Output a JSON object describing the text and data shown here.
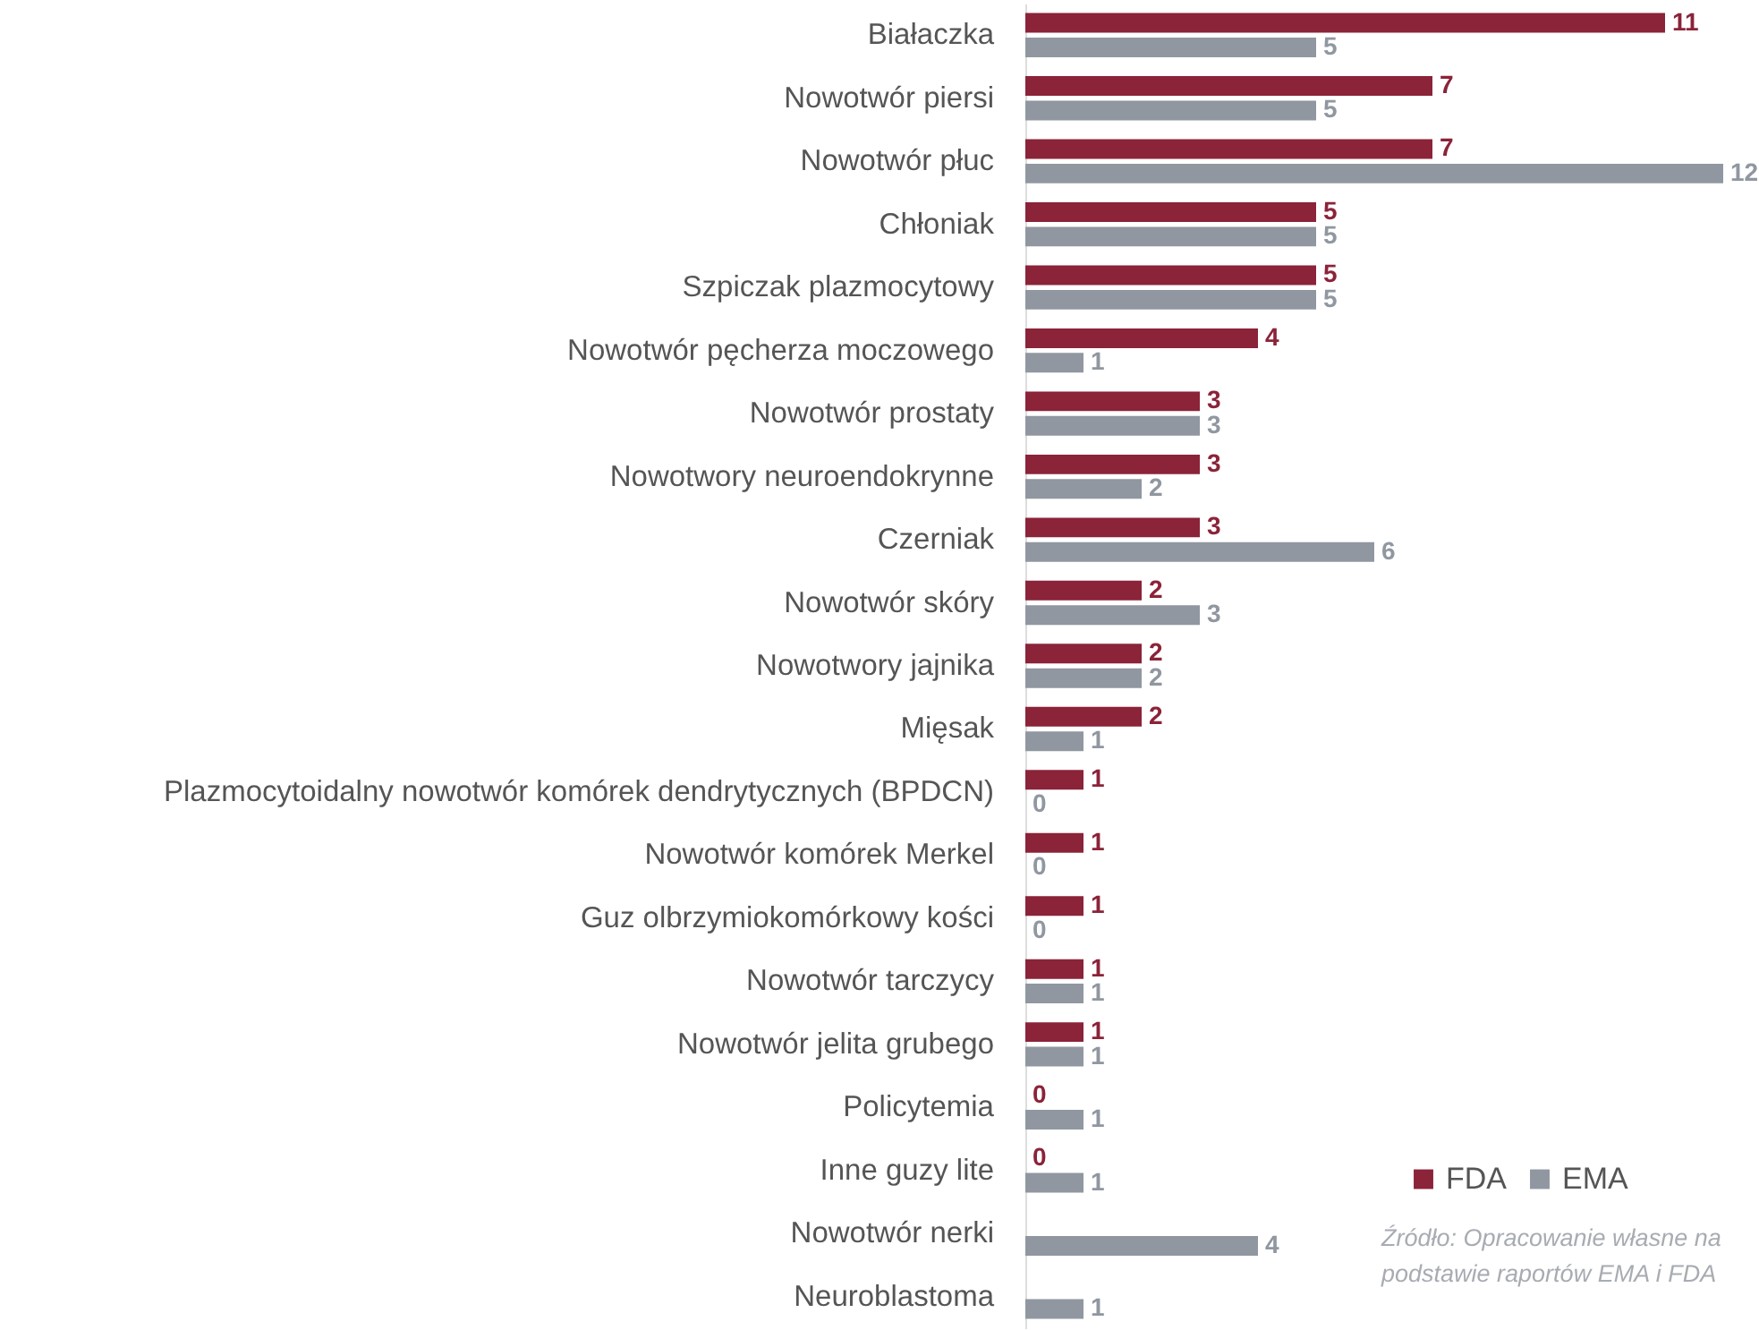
{
  "chart_data": {
    "type": "bar",
    "orientation": "horizontal",
    "data_labels": true,
    "legend": "bottom right",
    "categories": [
      "Białaczka",
      "Nowotwór piersi",
      "Nowotwór płuc",
      "Chłoniak",
      "Szpiczak plazmocytowy",
      "Nowotwór pęcherza moczowego",
      "Nowotwór prostaty",
      "Nowotwory neuroendokrynne",
      "Czerniak",
      "Nowotwór skóry",
      "Nowotwory jajnika",
      "Mięsak",
      "Plazmocytoidalny nowotwór komórek dendrytycznych (BPDCN)",
      "Nowotwór komórek Merkel",
      "Guz olbrzymiokomórkowy kości",
      "Nowotwór tarczycy",
      "Nowotwór jelita grubego",
      "Policytemia",
      "Inne guzy lite",
      "Nowotwór nerki",
      "Neuroblastoma"
    ],
    "series": [
      {
        "name": "FDA",
        "color": "#8b2339",
        "values": [
          11,
          7,
          7,
          5,
          5,
          4,
          3,
          3,
          3,
          2,
          2,
          2,
          1,
          1,
          1,
          1,
          1,
          0,
          0,
          null,
          null
        ]
      },
      {
        "name": "EMA",
        "color": "#9097a0",
        "values": [
          5,
          5,
          12,
          5,
          5,
          1,
          3,
          2,
          6,
          3,
          2,
          1,
          0,
          0,
          0,
          1,
          1,
          1,
          1,
          4,
          1
        ]
      }
    ],
    "annotations": [
      "Źródło: Opracowanie własne na podstawie raportów EMA i FDA"
    ]
  }
}
